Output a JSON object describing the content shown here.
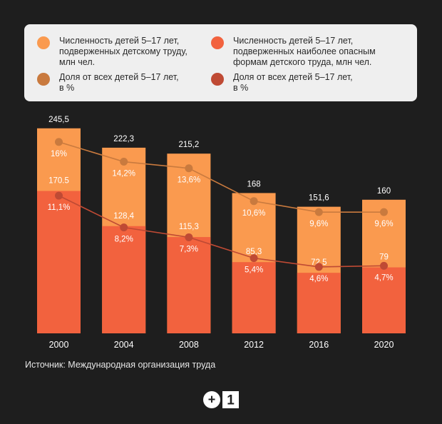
{
  "colors": {
    "background": "#1e1e1e",
    "bar_total": "#fa9a4f",
    "bar_hazardous": "#f2623e",
    "line_total": "#c97a3e",
    "line_hazardous": "#bf4a34",
    "legend_bg": "#efefef"
  },
  "legend": [
    {
      "label": "Численность детей 5–17 лет,\nподверженных детскому труду,\nмлн чел.",
      "color": "#fa9a4f"
    },
    {
      "label": "Численность детей 5–17 лет,\nподверженных наиболее опасным\nформам детского труда, млн чел.",
      "color": "#f2623e"
    },
    {
      "label": "Доля от всех детей 5–17 лет,\nв %",
      "color": "#c97a3e"
    },
    {
      "label": "Доля от всех детей 5–17 лет,\nв %",
      "color": "#bf4a34"
    }
  ],
  "chart_data": {
    "type": "bar",
    "categories": [
      "2000",
      "2004",
      "2008",
      "2012",
      "2016",
      "2020"
    ],
    "series": [
      {
        "name": "Численность детей 5–17 лет, подверженных детскому труду, млн чел.",
        "values": [
          245.5,
          222.3,
          215.2,
          168,
          151.6,
          160
        ],
        "labels": [
          "245,5",
          "222,3",
          "215,2",
          "168",
          "151,6",
          "160"
        ]
      },
      {
        "name": "Численность детей 5–17 лет, подверженных наиболее опасным формам детского труда, млн чел.",
        "values": [
          170.5,
          128.4,
          115.3,
          85.3,
          72.5,
          79
        ],
        "labels": [
          "170.5",
          "128,4",
          "115,3",
          "85,3",
          "72,5",
          "79"
        ]
      }
    ],
    "lines": [
      {
        "name": "Доля от всех детей 5–17 лет, в %",
        "values": [
          16,
          14.2,
          13.6,
          10.6,
          9.6,
          9.6
        ],
        "labels": [
          "16%",
          "14,2%",
          "13,6%",
          "10,6%",
          "9,6%",
          "9,6%"
        ]
      },
      {
        "name": "Доля от всех детей 5–17 лет, в %",
        "values": [
          11.1,
          8.2,
          7.3,
          5.4,
          4.6,
          4.7
        ],
        "labels": [
          "11,1%",
          "8,2%",
          "7,3%",
          "5,4%",
          "4,6%",
          "4,7%"
        ]
      }
    ]
  },
  "source": "Источник: Международная организация труда",
  "logo": {
    "plus": "+",
    "one": "1"
  }
}
